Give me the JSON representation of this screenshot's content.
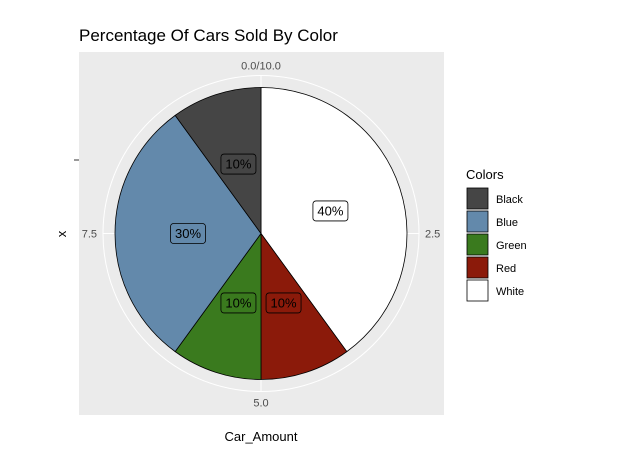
{
  "chart_data": {
    "type": "pie",
    "title": "Percentage Of Cars Sold By Color",
    "xlabel": "Car_Amount",
    "ylabel": "x",
    "theta_ticks": [
      {
        "value": 0,
        "label": "0.0/10.0"
      },
      {
        "value": 2.5,
        "label": "2.5"
      },
      {
        "value": 5,
        "label": "5.0"
      },
      {
        "value": 7.5,
        "label": "7.5"
      }
    ],
    "theta_range": [
      0,
      10
    ],
    "legend": {
      "title": "Colors",
      "position": "right"
    },
    "slices": [
      {
        "name": "White",
        "value": 4,
        "label": "40%",
        "color": "#ffffff"
      },
      {
        "name": "Red",
        "value": 1,
        "label": "10%",
        "color": "#8b1a0a"
      },
      {
        "name": "Green",
        "value": 1,
        "label": "10%",
        "color": "#3a7a1e"
      },
      {
        "name": "Blue",
        "value": 3,
        "label": "30%",
        "color": "#6389ab"
      },
      {
        "name": "Black",
        "value": 1,
        "label": "10%",
        "color": "#454545"
      }
    ],
    "legend_order": [
      "Black",
      "Blue",
      "Green",
      "Red",
      "White"
    ],
    "panel_background": "#ebebeb",
    "grid_color": "#ffffff"
  }
}
